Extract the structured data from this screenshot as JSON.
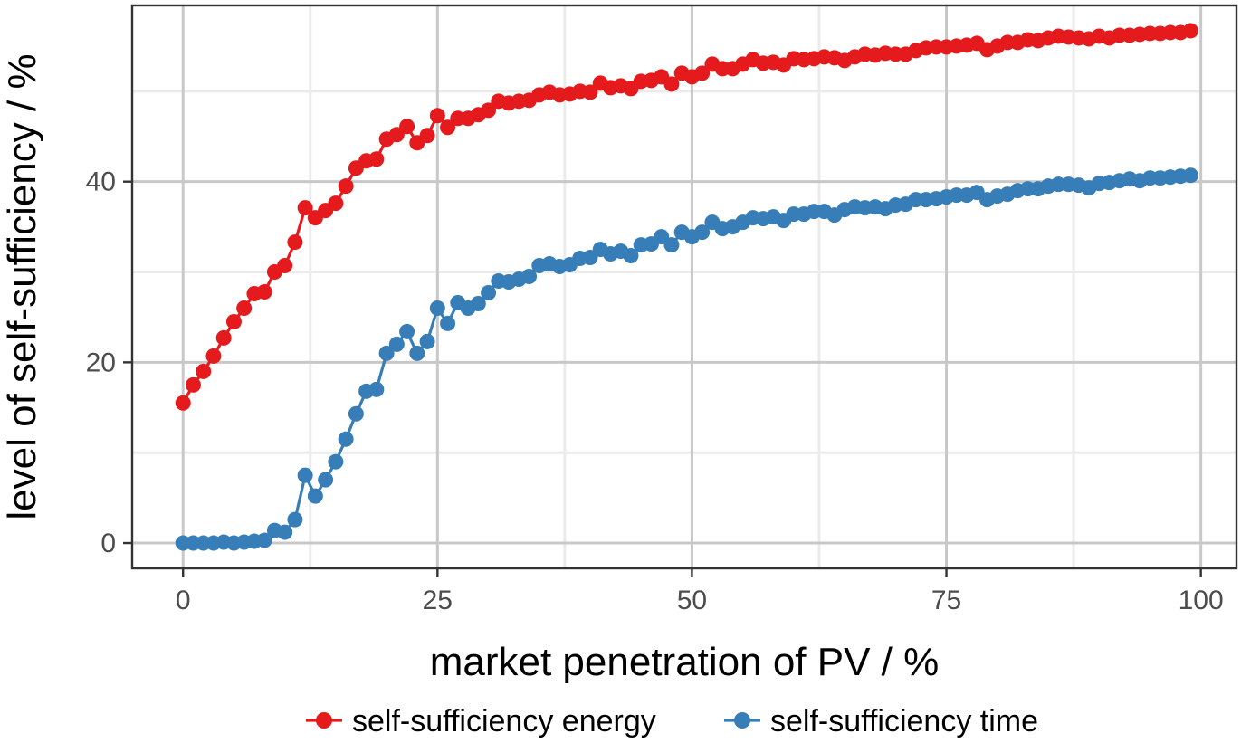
{
  "chart_data": {
    "type": "line",
    "xlabel": "market penetration of PV / %",
    "ylabel": "level of self-sufficiency / %",
    "xlim": [
      -5,
      103.5
    ],
    "ylim": [
      -2.8,
      59.5
    ],
    "x_ticks": [
      0,
      25,
      50,
      75,
      100
    ],
    "y_ticks": [
      0,
      20,
      40
    ],
    "x_tick_labels": [
      "0",
      "25",
      "50",
      "75",
      "100"
    ],
    "y_tick_labels": [
      "0",
      "20",
      "40"
    ],
    "grid": true,
    "legend_position": "bottom",
    "x": [
      0,
      1,
      2,
      3,
      4,
      5,
      6,
      7,
      8,
      9,
      10,
      11,
      12,
      13,
      14,
      15,
      16,
      17,
      18,
      19,
      20,
      21,
      22,
      23,
      24,
      25,
      26,
      27,
      28,
      29,
      30,
      31,
      32,
      33,
      34,
      35,
      36,
      37,
      38,
      39,
      40,
      41,
      42,
      43,
      44,
      45,
      46,
      47,
      48,
      49,
      50,
      51,
      52,
      53,
      54,
      55,
      56,
      57,
      58,
      59,
      60,
      61,
      62,
      63,
      64,
      65,
      66,
      67,
      68,
      69,
      70,
      71,
      72,
      73,
      74,
      75,
      76,
      77,
      78,
      79,
      80,
      81,
      82,
      83,
      84,
      85,
      86,
      87,
      88,
      89,
      90,
      91,
      92,
      93,
      94,
      95,
      96,
      97,
      98,
      99
    ],
    "series": [
      {
        "name": "self-sufficiency energy",
        "color": "#e41a1c",
        "values": [
          15.5,
          17.5,
          19.0,
          20.7,
          22.7,
          24.5,
          26.0,
          27.6,
          27.8,
          30.0,
          30.7,
          33.3,
          37.1,
          36.0,
          36.8,
          37.6,
          39.5,
          41.5,
          42.3,
          42.5,
          44.7,
          45.2,
          46.1,
          44.3,
          45.1,
          47.3,
          46.0,
          47.0,
          47.0,
          47.4,
          47.9,
          48.9,
          48.7,
          48.9,
          49.0,
          49.6,
          49.9,
          49.6,
          49.7,
          50.0,
          49.9,
          50.9,
          50.4,
          50.6,
          50.3,
          51.1,
          51.2,
          51.6,
          50.8,
          52.0,
          51.6,
          52.0,
          53.0,
          52.5,
          52.5,
          53.0,
          53.5,
          53.1,
          53.2,
          52.9,
          53.6,
          53.5,
          53.6,
          53.8,
          53.7,
          53.4,
          53.8,
          54.1,
          54.0,
          54.2,
          54.1,
          54.1,
          54.5,
          54.8,
          54.9,
          54.9,
          55.0,
          55.1,
          55.3,
          54.6,
          55.0,
          55.4,
          55.4,
          55.7,
          55.6,
          55.9,
          56.1,
          56.0,
          55.9,
          55.8,
          56.1,
          55.9,
          56.2,
          56.2,
          56.3,
          56.4,
          56.4,
          56.5,
          56.5,
          56.7
        ]
      },
      {
        "name": "self-sufficiency time",
        "color": "#377eb8",
        "values": [
          0.0,
          0.0,
          0.0,
          0.0,
          0.1,
          0.0,
          0.1,
          0.2,
          0.3,
          1.4,
          1.2,
          2.6,
          7.5,
          5.2,
          7.0,
          9.0,
          11.5,
          14.3,
          16.8,
          17.0,
          21.0,
          22.0,
          23.4,
          21.0,
          22.3,
          26.0,
          24.3,
          26.6,
          26.0,
          26.5,
          27.7,
          29.0,
          28.9,
          29.2,
          29.5,
          30.7,
          30.9,
          30.6,
          30.8,
          31.5,
          31.6,
          32.5,
          32.0,
          32.3,
          31.8,
          33.0,
          33.1,
          33.9,
          33.0,
          34.4,
          33.9,
          34.4,
          35.5,
          34.8,
          35.0,
          35.5,
          36.0,
          35.9,
          36.1,
          35.7,
          36.4,
          36.4,
          36.7,
          36.7,
          36.3,
          36.9,
          37.2,
          37.1,
          37.2,
          37.0,
          37.4,
          37.5,
          38.0,
          38.0,
          38.1,
          38.3,
          38.5,
          38.5,
          38.8,
          38.0,
          38.4,
          38.6,
          39.0,
          39.2,
          39.2,
          39.5,
          39.7,
          39.7,
          39.6,
          39.3,
          39.8,
          39.9,
          40.1,
          40.3,
          40.1,
          40.4,
          40.4,
          40.5,
          40.6,
          40.7
        ]
      }
    ]
  }
}
